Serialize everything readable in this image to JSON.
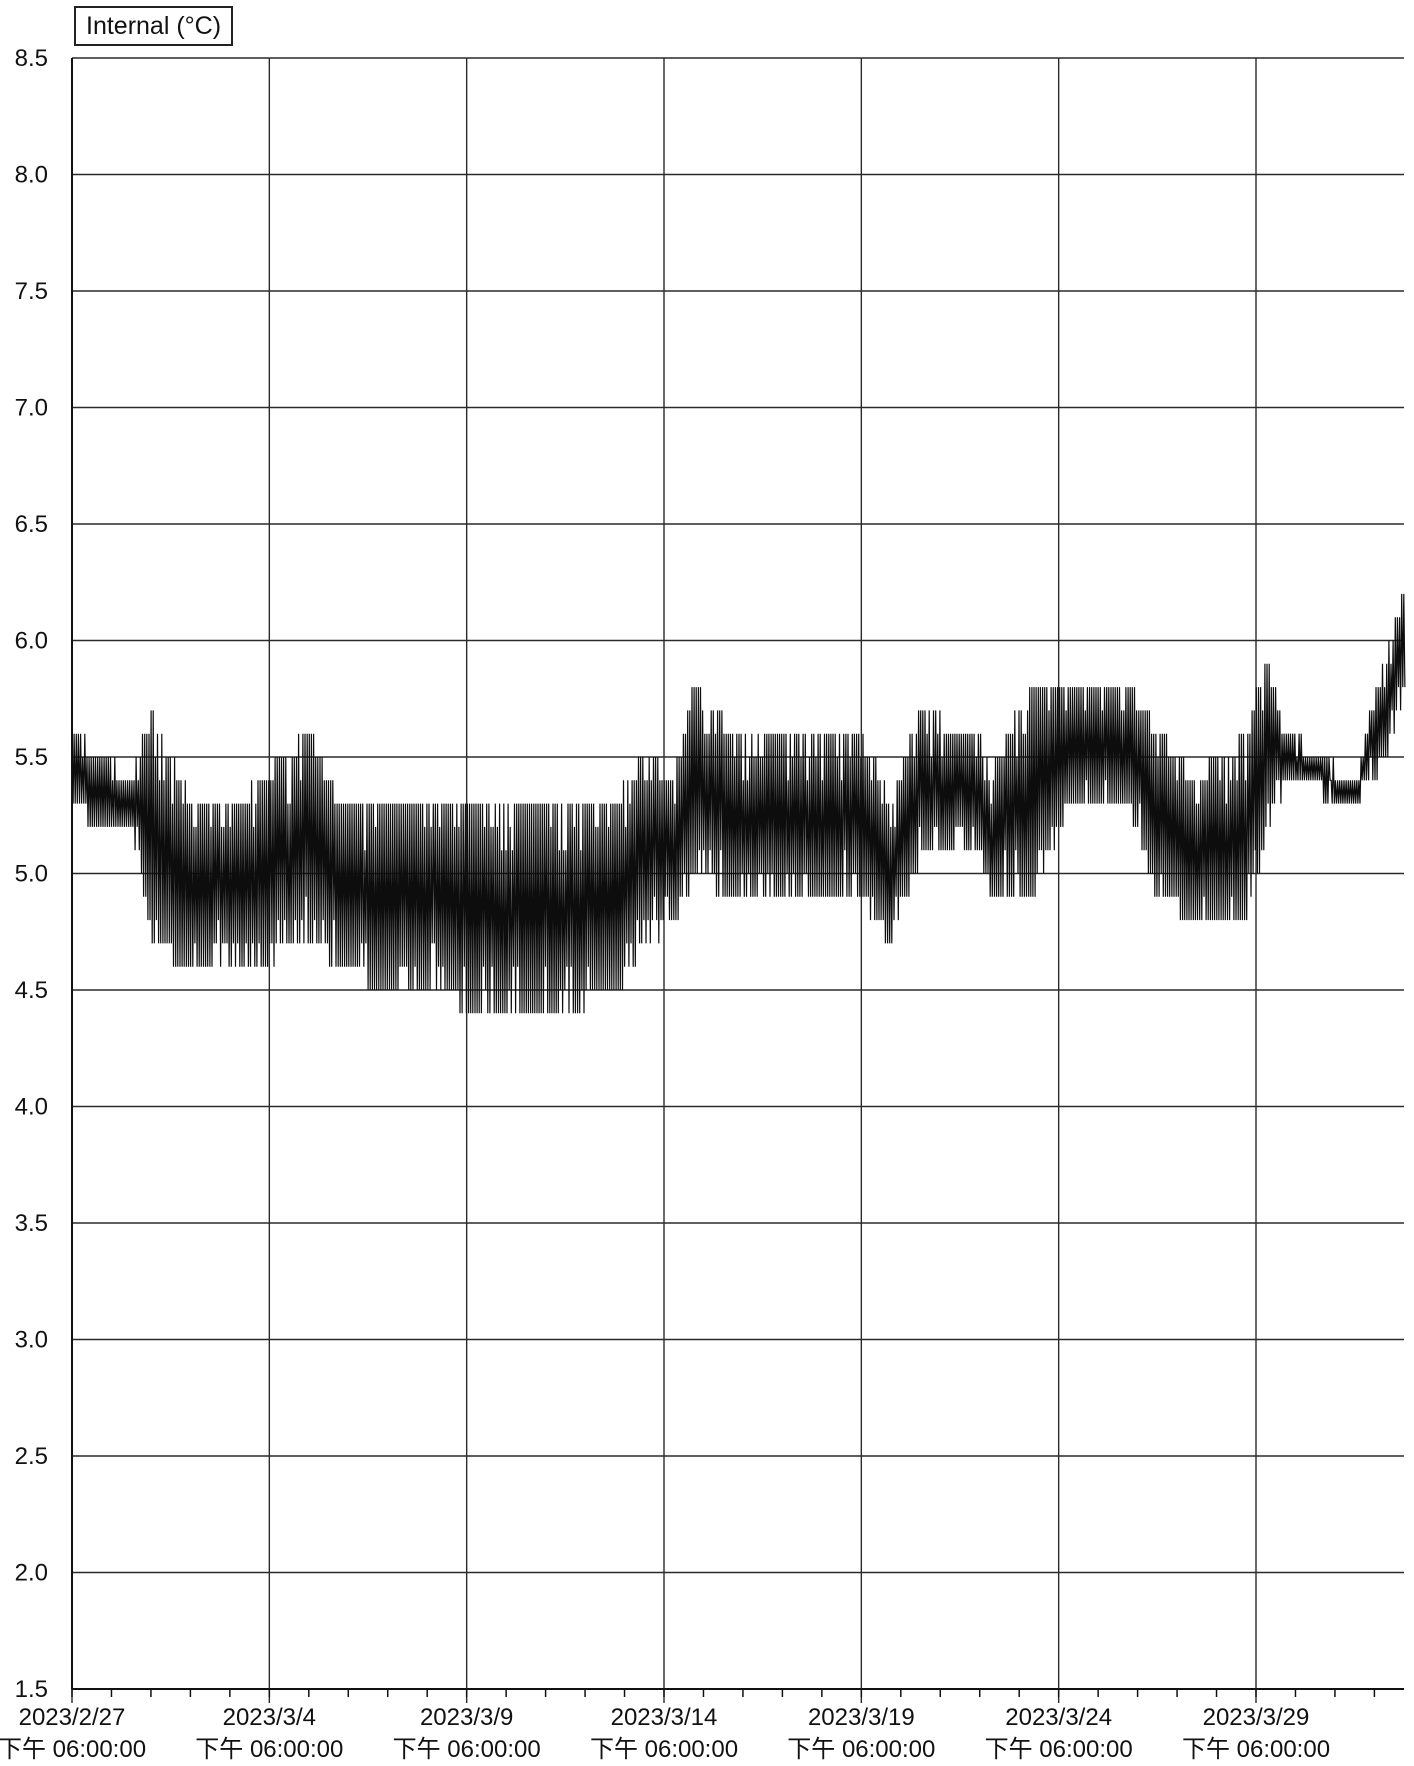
{
  "chart_data": {
    "type": "line",
    "title": "",
    "xlabel": "",
    "ylabel": "",
    "legend_position": "top-left",
    "grid": true,
    "series": [
      {
        "name": "Internal (°C)",
        "color": "#0d0d0d",
        "envelope": [
          {
            "date": "2023/2/27 18:00",
            "low": 5.3,
            "high": 5.6
          },
          {
            "date": "2023/2/28 12:00",
            "low": 5.2,
            "high": 5.5
          },
          {
            "date": "2023/3/1 06:00",
            "low": 5.2,
            "high": 5.4
          },
          {
            "date": "2023/3/1 18:00",
            "low": 4.7,
            "high": 5.7
          },
          {
            "date": "2023/3/2 18:00",
            "low": 4.6,
            "high": 5.3
          },
          {
            "date": "2023/3/4 00:00",
            "low": 4.6,
            "high": 5.3
          },
          {
            "date": "2023/3/5 18:00",
            "low": 4.7,
            "high": 5.6
          },
          {
            "date": "2023/3/6 12:00",
            "low": 4.6,
            "high": 5.3
          },
          {
            "date": "2023/3/7 18:00",
            "low": 4.5,
            "high": 5.3
          },
          {
            "date": "2023/3/9 00:00",
            "low": 4.5,
            "high": 5.3
          },
          {
            "date": "2023/3/10 00:00",
            "low": 4.4,
            "high": 5.3
          },
          {
            "date": "2023/3/12 00:00",
            "low": 4.4,
            "high": 5.3
          },
          {
            "date": "2023/3/13 12:00",
            "low": 4.5,
            "high": 5.3
          },
          {
            "date": "2023/3/14 06:00",
            "low": 4.7,
            "high": 5.5
          },
          {
            "date": "2023/3/15 00:00",
            "low": 4.8,
            "high": 5.4
          },
          {
            "date": "2023/3/15 12:00",
            "low": 5.0,
            "high": 5.8
          },
          {
            "date": "2023/3/16 12:00",
            "low": 4.9,
            "high": 5.6
          },
          {
            "date": "2023/3/18 00:00",
            "low": 4.9,
            "high": 5.6
          },
          {
            "date": "2023/3/19 18:00",
            "low": 4.9,
            "high": 5.6
          },
          {
            "date": "2023/3/20 12:00",
            "low": 4.7,
            "high": 5.3
          },
          {
            "date": "2023/3/21 06:00",
            "low": 5.1,
            "high": 5.7
          },
          {
            "date": "2023/3/22 18:00",
            "low": 5.1,
            "high": 5.6
          },
          {
            "date": "2023/3/23 00:00",
            "low": 4.9,
            "high": 5.4
          },
          {
            "date": "2023/3/24 00:00",
            "low": 4.9,
            "high": 5.8
          },
          {
            "date": "2023/3/25 00:00",
            "low": 5.3,
            "high": 5.8
          },
          {
            "date": "2023/3/26 12:00",
            "low": 5.3,
            "high": 5.8
          },
          {
            "date": "2023/3/27 06:00",
            "low": 4.9,
            "high": 5.6
          },
          {
            "date": "2023/3/28 06:00",
            "low": 4.8,
            "high": 5.4
          },
          {
            "date": "2023/3/29 12:00",
            "low": 4.8,
            "high": 5.6
          },
          {
            "date": "2023/3/30 00:00",
            "low": 5.2,
            "high": 5.9
          },
          {
            "date": "2023/3/30 12:00",
            "low": 5.4,
            "high": 5.6
          },
          {
            "date": "2023/4/1 06:00",
            "low": 5.3,
            "high": 5.4
          },
          {
            "date": "2023/4/2 00:00",
            "low": 5.5,
            "high": 5.9
          },
          {
            "date": "2023/4/2 12:00",
            "low": 5.8,
            "high": 6.2
          }
        ]
      }
    ],
    "y_axis": {
      "range": [
        1.5,
        8.5
      ],
      "ticks": [
        "1.5",
        "2.0",
        "2.5",
        "3.0",
        "3.5",
        "4.0",
        "4.5",
        "5.0",
        "5.5",
        "6.0",
        "6.5",
        "7.0",
        "7.5",
        "8.0",
        "8.5"
      ]
    },
    "x_axis": {
      "range": [
        "2023/2/27 18:00",
        "2023/4/2 12:00"
      ],
      "ticks": [
        {
          "date": "2023/2/27",
          "time": "下午 06:00:00"
        },
        {
          "date": "2023/3/4",
          "time": "下午 06:00:00"
        },
        {
          "date": "2023/3/9",
          "time": "下午 06:00:00"
        },
        {
          "date": "2023/3/14",
          "time": "下午 06:00:00"
        },
        {
          "date": "2023/3/19",
          "time": "下午 06:00:00"
        },
        {
          "date": "2023/3/24",
          "time": "下午 06:00:00"
        },
        {
          "date": "2023/3/29",
          "time": "下午 06:00:00"
        }
      ],
      "minor_ticks": "daily"
    }
  }
}
